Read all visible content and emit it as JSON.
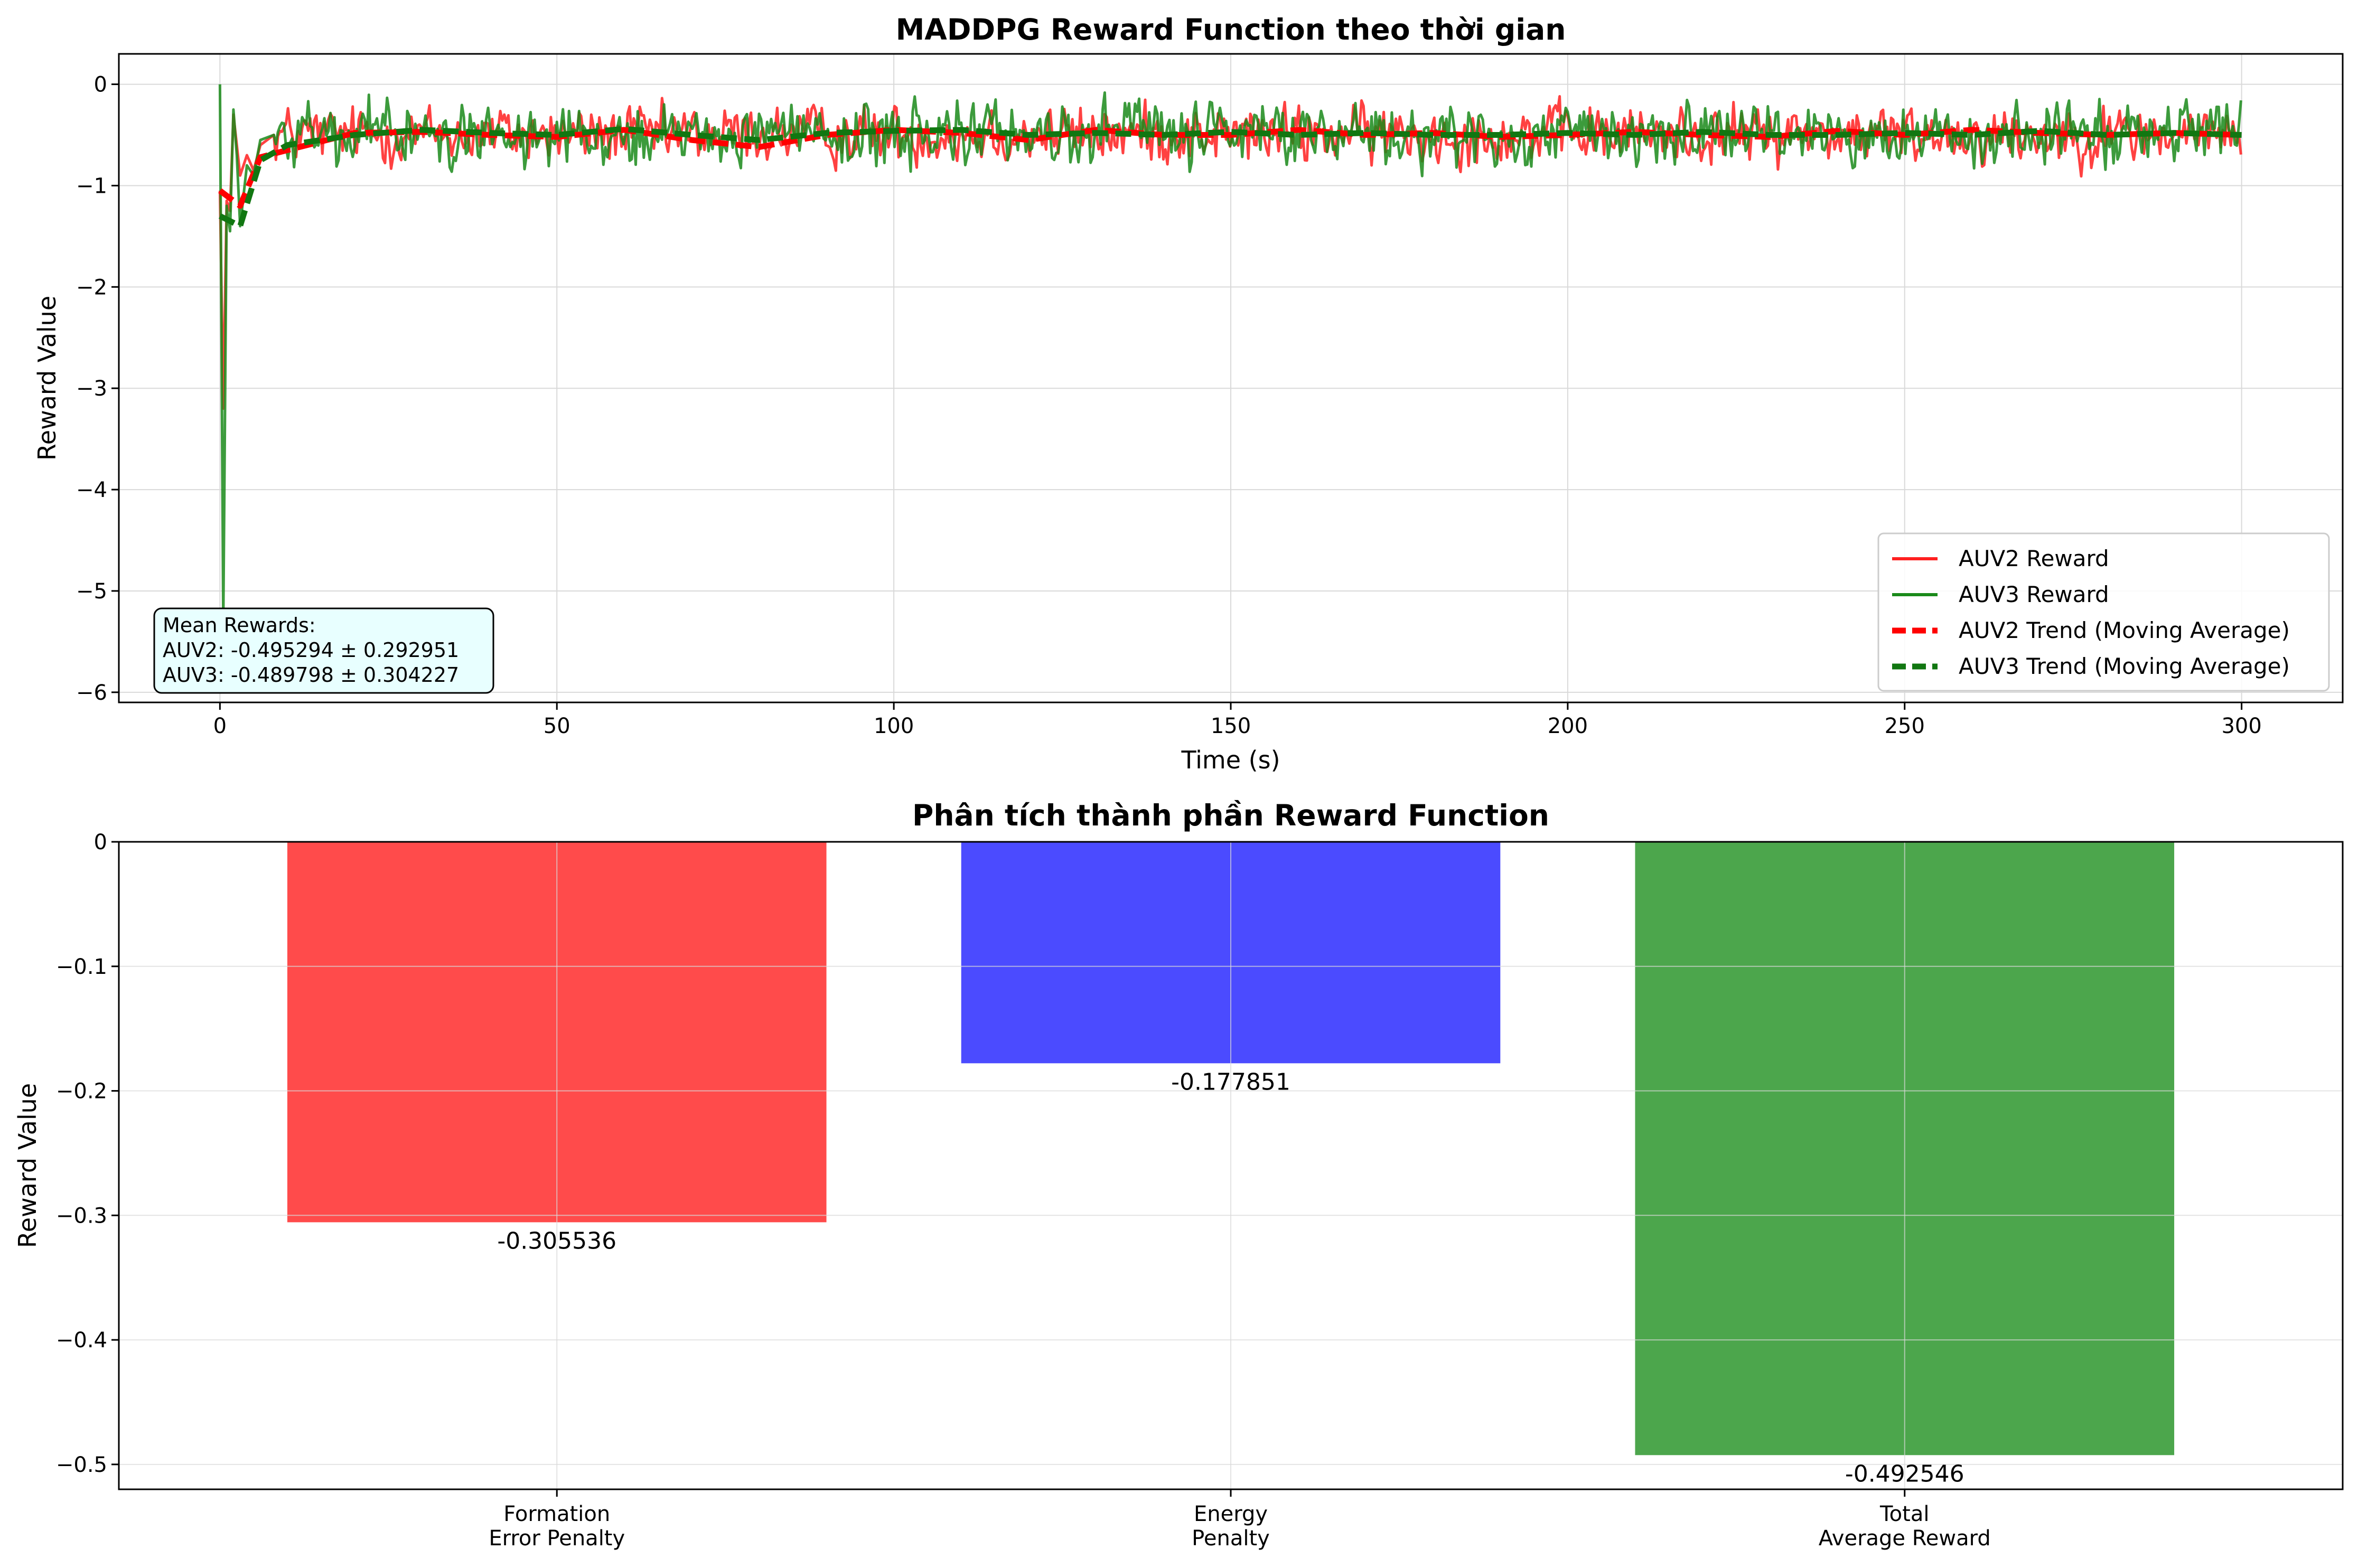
{
  "chart_data": [
    {
      "type": "line",
      "title": "MADDPG Reward Function theo thời gian",
      "xlabel": "Time (s)",
      "ylabel": "Reward Value",
      "xlim": [
        -15,
        315
      ],
      "ylim": [
        -6.1,
        0.3
      ],
      "xticks": [
        0,
        50,
        100,
        150,
        200,
        250,
        300
      ],
      "yticks": [
        -6,
        -5,
        -4,
        -3,
        -2,
        -1,
        0
      ],
      "grid": true,
      "legend_position": "lower-right",
      "series": [
        {
          "name": "AUV2 Reward",
          "color": "#ff2020",
          "style": "solid",
          "baseline": -0.495,
          "std": 0.29,
          "x": [
            0,
            0.5,
            1,
            1.5,
            2,
            2.5,
            3,
            4,
            5,
            6,
            8
          ],
          "y": [
            -1.05,
            -3.2,
            -1.15,
            -1.25,
            -0.3,
            -0.6,
            -0.9,
            -0.7,
            -0.85,
            -0.6,
            -0.5
          ]
        },
        {
          "name": "AUV3 Reward",
          "color": "#1a8a1a",
          "style": "solid",
          "baseline": -0.49,
          "std": 0.3,
          "x": [
            0,
            0.5,
            1,
            1.5,
            2,
            2.5,
            3,
            4,
            5,
            6,
            8
          ],
          "y": [
            0.0,
            -5.3,
            -1.2,
            -1.45,
            -0.25,
            -0.7,
            -1.4,
            -0.8,
            -0.9,
            -0.55,
            -0.5
          ]
        },
        {
          "name": "AUV2 Trend (Moving Average)",
          "color": "#ff0000",
          "style": "dashed",
          "x": [
            0,
            3,
            6,
            10,
            20,
            30,
            40,
            50,
            60,
            70,
            80,
            90,
            100,
            110,
            120,
            130,
            140,
            150,
            160,
            170,
            180,
            190,
            200,
            210,
            220,
            230,
            240,
            250,
            260,
            270,
            280,
            290,
            300
          ],
          "y": [
            -1.05,
            -1.2,
            -0.72,
            -0.65,
            -0.48,
            -0.47,
            -0.5,
            -0.52,
            -0.45,
            -0.55,
            -0.62,
            -0.5,
            -0.45,
            -0.48,
            -0.55,
            -0.45,
            -0.5,
            -0.5,
            -0.45,
            -0.5,
            -0.48,
            -0.52,
            -0.5,
            -0.47,
            -0.5,
            -0.52,
            -0.46,
            -0.5,
            -0.45,
            -0.48,
            -0.5,
            -0.48,
            -0.5
          ]
        },
        {
          "name": "AUV3 Trend (Moving Average)",
          "color": "#117711",
          "style": "dashed",
          "x": [
            0,
            3,
            6,
            10,
            20,
            30,
            40,
            50,
            60,
            70,
            80,
            90,
            100,
            110,
            120,
            130,
            140,
            150,
            160,
            170,
            180,
            190,
            200,
            210,
            220,
            230,
            240,
            250,
            260,
            270,
            280,
            290,
            300
          ],
          "y": [
            -1.3,
            -1.4,
            -0.75,
            -0.6,
            -0.5,
            -0.45,
            -0.48,
            -0.5,
            -0.44,
            -0.5,
            -0.55,
            -0.48,
            -0.46,
            -0.45,
            -0.5,
            -0.48,
            -0.5,
            -0.47,
            -0.5,
            -0.48,
            -0.5,
            -0.5,
            -0.48,
            -0.5,
            -0.47,
            -0.5,
            -0.5,
            -0.48,
            -0.5,
            -0.46,
            -0.5,
            -0.48,
            -0.5
          ]
        }
      ],
      "annotation": {
        "position": "lower-left",
        "lines": [
          "Mean Rewards:",
          "AUV2: -0.495294 ± 0.292951",
          "AUV3: -0.489798 ± 0.304227"
        ]
      }
    },
    {
      "type": "bar",
      "title": "Phân tích thành phần Reward Function",
      "xlabel": "",
      "ylabel": "Reward Value",
      "ylim": [
        -0.52,
        0.0
      ],
      "yticks": [
        0.0,
        -0.1,
        -0.2,
        -0.3,
        -0.4,
        -0.5
      ],
      "grid": true,
      "categories": [
        [
          "Formation",
          "Error Penalty"
        ],
        [
          "Energy",
          "Penalty"
        ],
        [
          "Total",
          "Average Reward"
        ]
      ],
      "values": [
        -0.305536,
        -0.177851,
        -0.492546
      ],
      "value_labels": [
        "-0.305536",
        "-0.177851",
        "-0.492546"
      ],
      "colors": [
        "#ff4b4b",
        "#4b4bff",
        "#4ca64c"
      ]
    }
  ]
}
